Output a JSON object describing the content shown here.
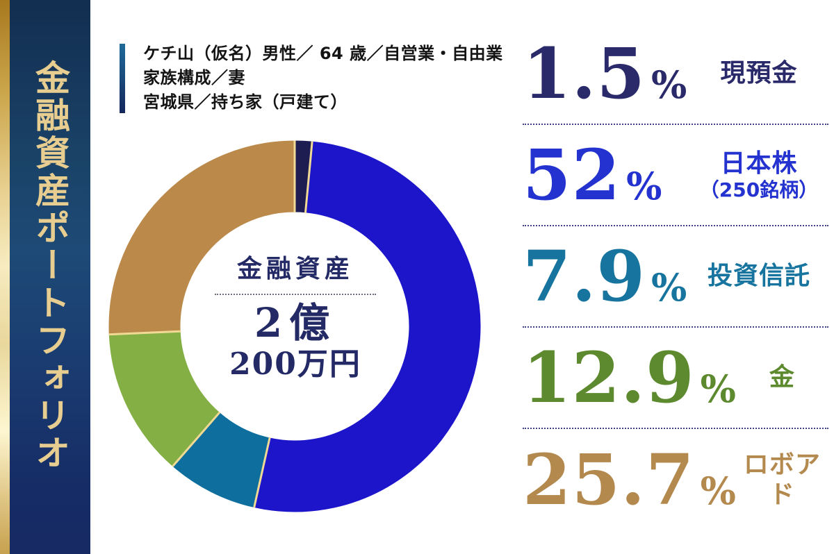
{
  "sidebar": {
    "title": "金融資産ポートフォリオ",
    "gold_text_color": "#e7cd8f"
  },
  "profile": {
    "lines": [
      "ケチ山（仮名）男性／ 64 歳／自営業・自由業",
      "家族構成／妻",
      "宮城県／持ち家（戸建て）"
    ]
  },
  "chart_data": {
    "type": "pie",
    "donut": true,
    "title": "金融資産ポートフォリオ",
    "start_angle_deg": 0,
    "direction": "clockwise",
    "separator_color": "#f0d995",
    "center": {
      "label": "金融資産",
      "line1": "2億",
      "line2": "200万円"
    },
    "segments": [
      {
        "label": "現預金",
        "value": 1.5,
        "color": "#1e1d52"
      },
      {
        "label": "日本株（250銘柄）",
        "value": 52,
        "color": "#1d15ca"
      },
      {
        "label": "投資信託",
        "value": 7.9,
        "color": "#0e6f9e"
      },
      {
        "label": "金",
        "value": 12.9,
        "color": "#83af45"
      },
      {
        "label": "ロボアド",
        "value": 25.7,
        "color": "#bb8a4b"
      }
    ]
  },
  "legend": {
    "rows": [
      {
        "value": "1.5",
        "unit": "%",
        "label": "現預金",
        "sub": "",
        "color": "#2a2a6a"
      },
      {
        "value": "52",
        "unit": "%",
        "label": "日本株",
        "sub": "（250銘柄）",
        "color": "#2433cf"
      },
      {
        "value": "7.9",
        "unit": "%",
        "label": "投資信託",
        "sub": "",
        "color": "#17749e"
      },
      {
        "value": "12.9",
        "unit": "%",
        "label": "金",
        "sub": "",
        "color": "#5d8a2e"
      },
      {
        "value": "25.7",
        "unit": "%",
        "label": "ロボアド",
        "sub": "",
        "color": "#b3894e"
      }
    ]
  }
}
